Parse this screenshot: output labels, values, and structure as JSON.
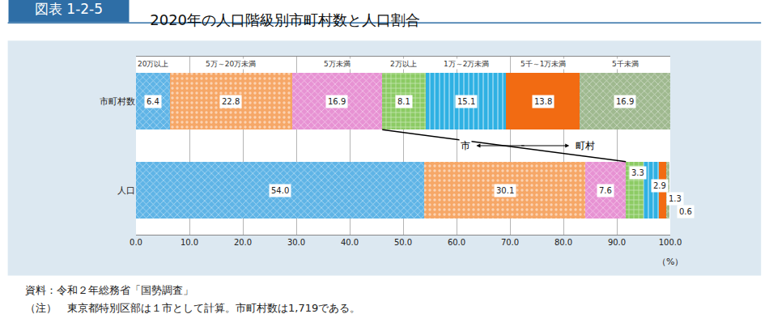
{
  "chart_data": {
    "type": "bar",
    "figure_label": "図表 1-2-5",
    "title": "2020年の人口階級別市町村数と人口割合",
    "orientation": "horizontal",
    "stacked": true,
    "data_labels": true,
    "grid": true,
    "categories": [
      "市町村数",
      "人口"
    ],
    "xlabel": "（%）",
    "xlim": [
      0,
      100
    ],
    "xticks": [
      {
        "value": 0,
        "label": "0.0"
      },
      {
        "value": 10,
        "label": "10.0"
      },
      {
        "value": 20,
        "label": "20.0"
      },
      {
        "value": 30,
        "label": "30.0"
      },
      {
        "value": 40,
        "label": "40.0"
      },
      {
        "value": 50,
        "label": "50.0"
      },
      {
        "value": 60,
        "label": "60.0"
      },
      {
        "value": 70,
        "label": "70.0"
      },
      {
        "value": 80,
        "label": "80.0"
      },
      {
        "value": 90,
        "label": "90.0"
      },
      {
        "value": 100,
        "label": "100.0"
      }
    ],
    "series": [
      {
        "name": "20万以上",
        "group": "市",
        "color": "#5fb4e6",
        "values": [
          6.4,
          54.0
        ],
        "value_labels": [
          "6.4",
          "54.0"
        ]
      },
      {
        "name": "5万～20万未満",
        "group": "市",
        "color": "#f6a767",
        "values": [
          22.8,
          30.1
        ],
        "value_labels": [
          "22.8",
          "30.1"
        ]
      },
      {
        "name": "5万未満",
        "group": "市",
        "color": "#e792d3",
        "values": [
          16.9,
          7.6
        ],
        "value_labels": [
          "16.9",
          "7.6"
        ]
      },
      {
        "name": "2万以上",
        "group": "町村",
        "color": "#8ccb64",
        "values": [
          8.1,
          3.3
        ],
        "value_labels": [
          "8.1",
          "3.3"
        ]
      },
      {
        "name": "1万～2万未満",
        "group": "町村",
        "color": "#2fb1e3",
        "values": [
          15.1,
          2.9
        ],
        "value_labels": [
          "15.1",
          "2.9"
        ]
      },
      {
        "name": "5千～1万未満",
        "group": "町村",
        "color": "#f26b12",
        "values": [
          13.8,
          1.3
        ],
        "value_labels": [
          "13.8",
          "1.3"
        ]
      },
      {
        "name": "5千未満",
        "group": "町村",
        "color": "#9fb98f",
        "values": [
          16.9,
          0.6
        ],
        "value_labels": [
          "16.9",
          "0.6"
        ]
      }
    ],
    "source": "資料：令和２年総務省「国勢調査」",
    "note": "（注）　東京都特別区部は１市として計算。市町村数は1,719である。"
  }
}
